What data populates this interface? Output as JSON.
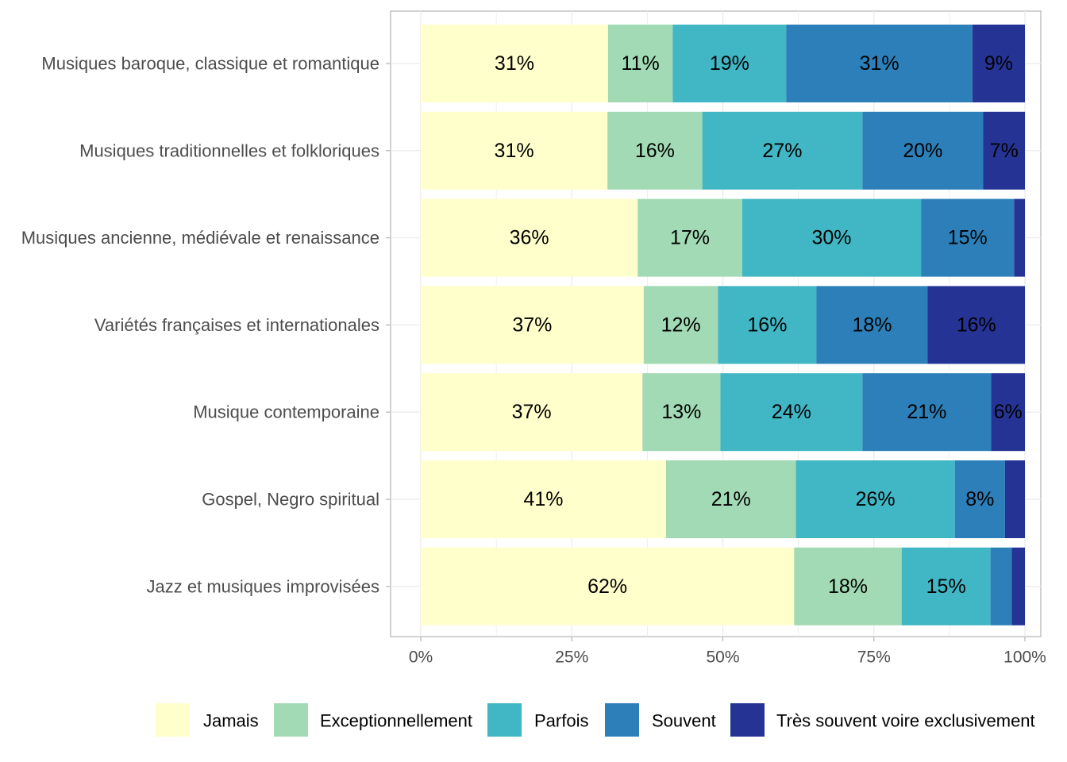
{
  "chart_data": {
    "type": "bar",
    "orientation": "horizontal",
    "stacked": "percent",
    "title": "",
    "xlabel": "",
    "ylabel": "",
    "xlim": [
      0,
      100
    ],
    "x_ticks": [
      "0%",
      "25%",
      "50%",
      "75%",
      "100%"
    ],
    "grid": true,
    "legend_position": "bottom",
    "categories": [
      "Musiques baroque, classique et romantique",
      "Musiques traditionnelles et folkloriques",
      "Musiques ancienne, médiévale et renaissance",
      "Variétés françaises et internationales",
      "Musique contemporaine",
      "Gospel, Negro spiritual",
      "Jazz et musiques improvisées"
    ],
    "series": [
      {
        "name": "Jamais",
        "color": "#ffffcc",
        "values": [
          31,
          30.9,
          35.9,
          36.9,
          36.7,
          40.6,
          61.8
        ],
        "labels": [
          "31%",
          "31%",
          "36%",
          "37%",
          "37%",
          "41%",
          "62%"
        ]
      },
      {
        "name": "Exceptionnellement",
        "color": "#a1dab4",
        "values": [
          10.7,
          15.7,
          17.3,
          12.3,
          12.9,
          21.5,
          17.8
        ],
        "labels": [
          "11%",
          "16%",
          "17%",
          "12%",
          "13%",
          "21%",
          "18%"
        ]
      },
      {
        "name": "Parfois",
        "color": "#41b6c4",
        "values": [
          18.8,
          26.5,
          29.6,
          16.3,
          23.5,
          26.3,
          14.7
        ],
        "labels": [
          "19%",
          "27%",
          "30%",
          "16%",
          "24%",
          "26%",
          "15%"
        ]
      },
      {
        "name": "Souvent",
        "color": "#2c7fb8",
        "values": [
          30.8,
          20,
          15.4,
          18.4,
          21.3,
          8.3,
          3.5
        ],
        "labels": [
          "31%",
          "20%",
          "15%",
          "18%",
          "21%",
          "8%",
          ""
        ]
      },
      {
        "name": "Très souvent voire exclusivement",
        "color": "#253494",
        "values": [
          8.7,
          6.9,
          1.8,
          16.1,
          5.6,
          3.3,
          2.2
        ],
        "labels": [
          "9%",
          "7%",
          "",
          "16%",
          "6%",
          "",
          ""
        ]
      }
    ]
  }
}
